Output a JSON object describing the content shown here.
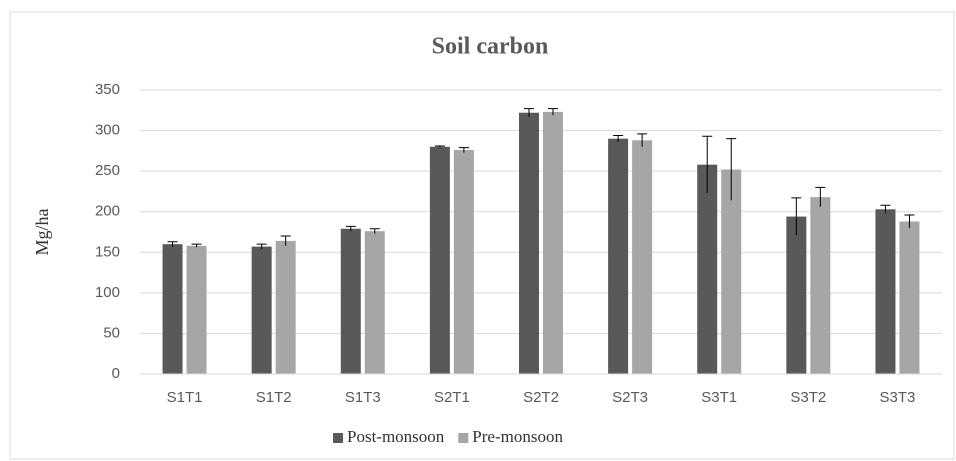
{
  "chart_data": {
    "type": "bar",
    "title": "Soil carbon",
    "y_label": "Mg/ha",
    "categories": [
      "S1T1",
      "S1T2",
      "S1T3",
      "S2T1",
      "S2T2",
      "S2T3",
      "S3T1",
      "S3T2",
      "S3T3"
    ],
    "series": [
      {
        "name": "Post-monsoon",
        "color": "#595959",
        "values": [
          160,
          157,
          179,
          280,
          322,
          290,
          258,
          194,
          203
        ],
        "errors": [
          3,
          3,
          3,
          1,
          5,
          4,
          35,
          23,
          5
        ]
      },
      {
        "name": "Pre-monsoon",
        "color": "#a6a6a6",
        "values": [
          158,
          164,
          176,
          276,
          323,
          288,
          252,
          218,
          188
        ],
        "errors": [
          2,
          6,
          3,
          3,
          4,
          8,
          38,
          12,
          8
        ]
      }
    ],
    "ylim": [
      0,
      350
    ],
    "yticks": [
      0,
      50,
      100,
      150,
      200,
      250,
      300,
      350
    ],
    "grid": true,
    "legend": "bottom"
  }
}
